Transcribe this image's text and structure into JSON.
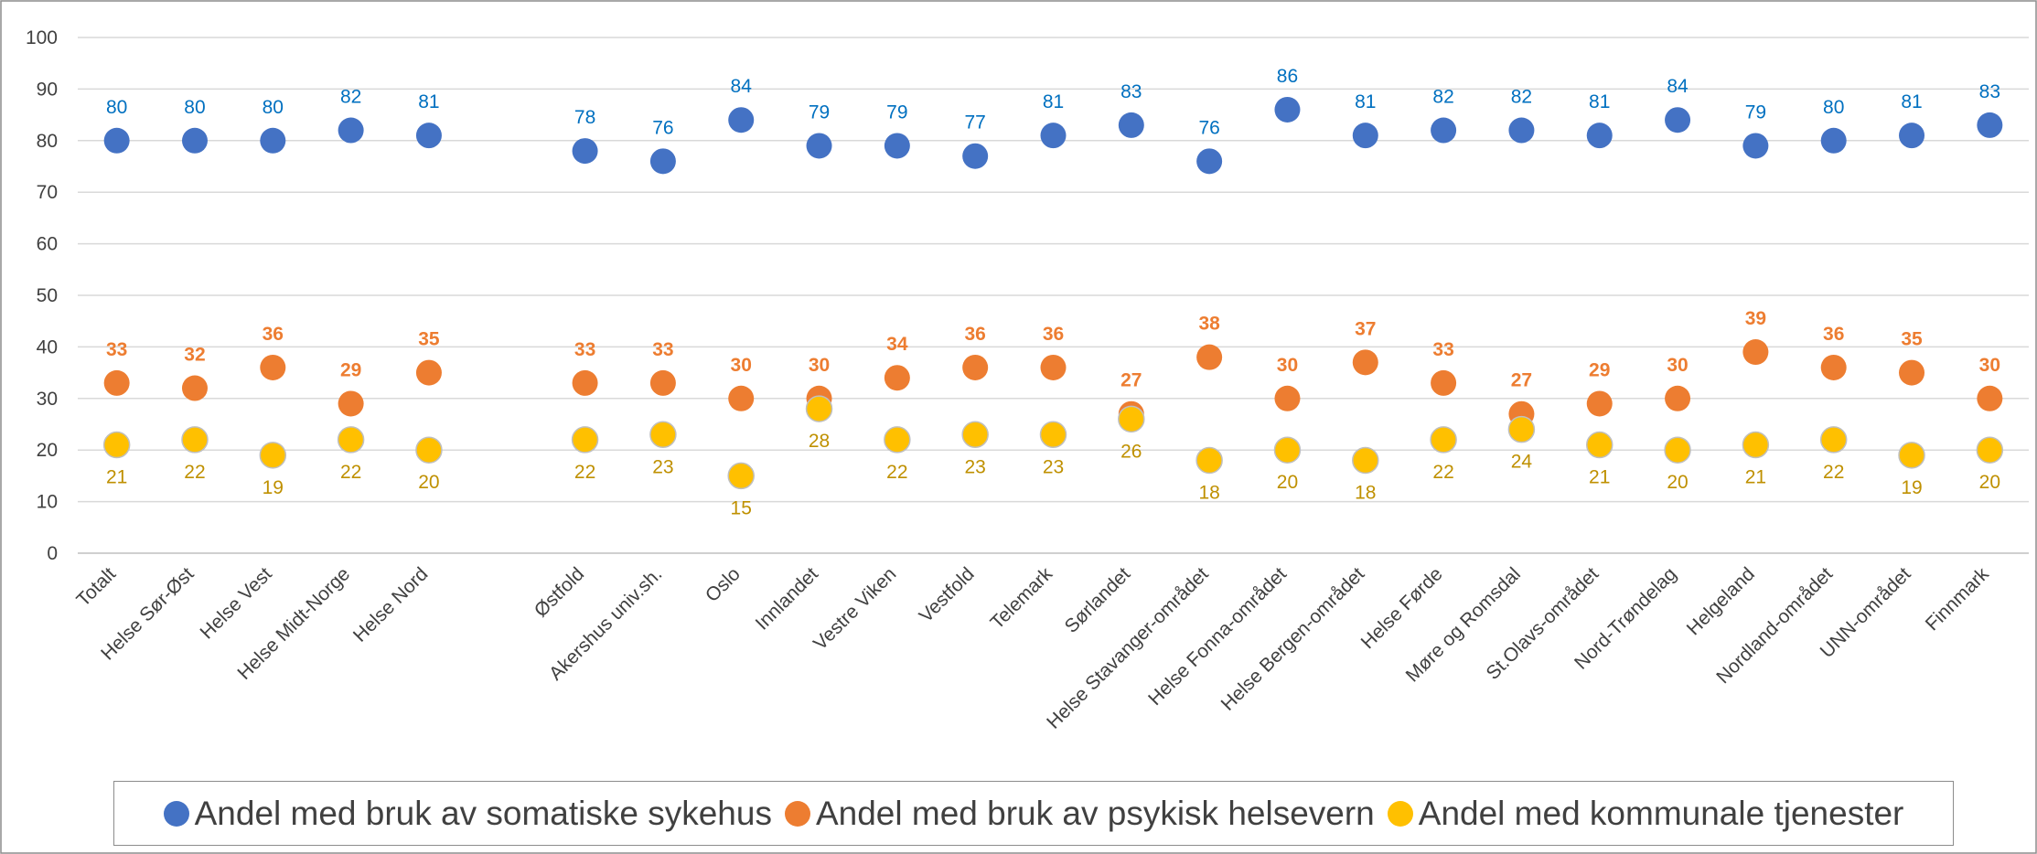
{
  "chart_data": {
    "type": "dot",
    "categories": [
      "Totalt",
      "Helse Sør-Øst",
      "Helse Vest",
      "Helse Midt-Norge",
      "Helse Nord",
      null,
      "Østfold",
      "Akershus univ.sh.",
      "Oslo",
      "Innlandet",
      "Vestre Viken",
      "Vestfold",
      "Telemark",
      "Sørlandet",
      "Helse Stavanger-området",
      "Helse Fonna-området",
      "Helse Bergen-området",
      "Helse Førde",
      "Møre og Romsdal",
      "St.Olavs-området",
      "Nord-Trøndelag",
      "Helgeland",
      "Nordland-området",
      "UNN-området",
      "Finnmark"
    ],
    "series": [
      {
        "name": "Andel med bruk av somatiske sykehus",
        "color": "#4472c4",
        "label_color": "#0070c0",
        "label_position": "above",
        "values": [
          80,
          80,
          80,
          82,
          81,
          null,
          78,
          76,
          84,
          79,
          79,
          77,
          81,
          83,
          76,
          86,
          81,
          82,
          82,
          81,
          84,
          79,
          80,
          81,
          83
        ]
      },
      {
        "name": "Andel med bruk av psykisk helsevern",
        "color": "#ed7d31",
        "label_color": "#ed7d31",
        "label_position": "above",
        "values": [
          33,
          32,
          36,
          29,
          35,
          null,
          33,
          33,
          30,
          30,
          34,
          36,
          36,
          27,
          38,
          30,
          37,
          33,
          27,
          29,
          30,
          39,
          36,
          35,
          30
        ]
      },
      {
        "name": "Andel med kommunale tjenester",
        "color": "#ffc000",
        "label_color": "#bf9000",
        "label_position": "below",
        "values": [
          21,
          22,
          19,
          22,
          20,
          null,
          22,
          23,
          15,
          28,
          22,
          23,
          23,
          26,
          18,
          20,
          18,
          22,
          24,
          21,
          20,
          21,
          22,
          19,
          20
        ]
      }
    ],
    "ylim": [
      0,
      100
    ],
    "yticks": [
      0,
      10,
      20,
      30,
      40,
      50,
      60,
      70,
      80,
      90,
      100
    ],
    "grid": true,
    "legend": "bottom"
  }
}
